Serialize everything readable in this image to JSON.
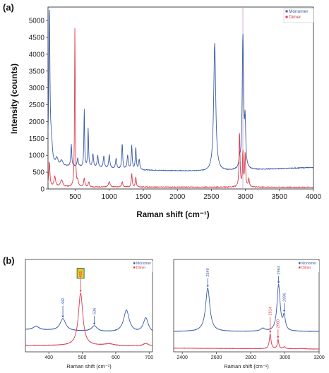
{
  "colors": {
    "monomer": "#3a5aa8",
    "dimer": "#d93a4a",
    "axis": "#333333",
    "marker": "#c9a0c9"
  },
  "chart_data": [
    {
      "id": "a",
      "panel_label": "(a)",
      "type": "line",
      "xlabel": "Raman shift (cm⁻¹)",
      "ylabel": "Intensity (counts)",
      "xlim": [
        100,
        4000
      ],
      "ylim": [
        0,
        5400
      ],
      "xticks": [
        500,
        1000,
        1500,
        2000,
        2500,
        3000,
        3500,
        4000
      ],
      "yticks": [
        0,
        500,
        1000,
        1500,
        2000,
        2500,
        3000,
        3500,
        4000,
        4500,
        5000
      ],
      "vline": 2963,
      "legend": {
        "position": "top-right",
        "entries": [
          "Monomer",
          "Dimer"
        ]
      },
      "series": [
        {
          "name": "Monomer",
          "color": "#3a5aa8",
          "baseline": [
            [
              100,
              700
            ],
            [
              1500,
              560
            ],
            [
              2500,
              520
            ],
            [
              4000,
              640
            ]
          ],
          "peaks": [
            [
              120,
              4600,
              10
            ],
            [
              150,
              600,
              15
            ],
            [
              230,
              200,
              20
            ],
            [
              300,
              150,
              20
            ],
            [
              442,
              650,
              8
            ],
            [
              536,
              250,
              10
            ],
            [
              632,
              1750,
              6
            ],
            [
              690,
              1150,
              7
            ],
            [
              760,
              400,
              10
            ],
            [
              830,
              350,
              10
            ],
            [
              920,
              350,
              10
            ],
            [
              1000,
              400,
              10
            ],
            [
              1100,
              300,
              10
            ],
            [
              1190,
              750,
              8
            ],
            [
              1270,
              400,
              10
            ],
            [
              1330,
              700,
              8
            ],
            [
              1390,
              650,
              8
            ],
            [
              1440,
              300,
              10
            ],
            [
              2549,
              3800,
              18
            ],
            [
              2963,
              3950,
              12
            ],
            [
              2996,
              1300,
              10
            ],
            [
              2914,
              300,
              10
            ]
          ]
        },
        {
          "name": "Dimer",
          "color": "#d93a4a",
          "baseline": [
            [
              100,
              60
            ],
            [
              4000,
              50
            ]
          ],
          "peaks": [
            [
              120,
              750,
              10
            ],
            [
              200,
              300,
              15
            ],
            [
              300,
              200,
              20
            ],
            [
              495,
              4750,
              6
            ],
            [
              536,
              150,
              10
            ],
            [
              632,
              250,
              10
            ],
            [
              700,
              150,
              10
            ],
            [
              1000,
              150,
              15
            ],
            [
              1190,
              150,
              10
            ],
            [
              1330,
              400,
              8
            ],
            [
              1390,
              300,
              8
            ],
            [
              2914,
              1650,
              8
            ],
            [
              2963,
              1050,
              7
            ],
            [
              2996,
              1000,
              8
            ],
            [
              3050,
              250,
              10
            ]
          ]
        }
      ]
    },
    {
      "id": "b-left",
      "panel_label": "(b)",
      "type": "line",
      "xlabel": "Raman shift (cm⁻¹)",
      "ylabel": "",
      "xlim": [
        330,
        710
      ],
      "ylim": [
        0,
        1
      ],
      "xticks": [
        400,
        500,
        600,
        700
      ],
      "legend": {
        "position": "top-right",
        "entries": [
          "Monomer",
          "Dimer"
        ]
      },
      "annotations": [
        {
          "text": "442",
          "x": 442,
          "series": "Monomer",
          "boxed": false
        },
        {
          "text": "495",
          "x": 495,
          "series": "Dimer",
          "boxed": true
        },
        {
          "text": "536",
          "x": 536,
          "series": "Monomer",
          "boxed": false
        }
      ],
      "series": [
        {
          "name": "Monomer",
          "color": "#3a5aa8",
          "baseline": [
            [
              330,
              0.24
            ],
            [
              710,
              0.2
            ]
          ],
          "peaks": [
            [
              362,
              0.04,
              10
            ],
            [
              442,
              0.13,
              10
            ],
            [
              536,
              0.06,
              10
            ],
            [
              632,
              0.24,
              10
            ],
            [
              690,
              0.16,
              9
            ]
          ]
        },
        {
          "name": "Dimer",
          "color": "#d93a4a",
          "baseline": [
            [
              330,
              0.07
            ],
            [
              710,
              0.06
            ]
          ],
          "peaks": [
            [
              495,
              0.57,
              8
            ],
            [
              580,
              0.02,
              20
            ],
            [
              690,
              0.03,
              10
            ]
          ]
        }
      ]
    },
    {
      "id": "b-right",
      "panel_label": "",
      "type": "line",
      "xlabel": "Raman shift (cm⁻¹)",
      "ylabel": "",
      "xlim": [
        2350,
        3200
      ],
      "ylim": [
        0,
        1
      ],
      "xticks": [
        2400,
        2600,
        2800,
        3000,
        3200
      ],
      "legend": {
        "position": "top-right",
        "entries": [
          "Monomer",
          "Dimer"
        ]
      },
      "annotations": [
        {
          "text": "2549",
          "x": 2549,
          "series": "Monomer",
          "boxed": false
        },
        {
          "text": "2914",
          "x": 2914,
          "series": "Dimer",
          "boxed": false
        },
        {
          "text": "2960",
          "x": 2960,
          "series": "Dimer",
          "boxed": false
        },
        {
          "text": "2963",
          "x": 2963,
          "series": "Monomer",
          "boxed": false
        },
        {
          "text": "2996",
          "x": 2996,
          "series": "Monomer",
          "boxed": false
        }
      ],
      "series": [
        {
          "name": "Monomer",
          "color": "#3a5aa8",
          "baseline": [
            [
              2350,
              0.22
            ],
            [
              3200,
              0.22
            ]
          ],
          "peaks": [
            [
              2549,
              0.47,
              15
            ],
            [
              2870,
              0.03,
              15
            ],
            [
              2963,
              0.5,
              11
            ],
            [
              2996,
              0.15,
              8
            ]
          ]
        },
        {
          "name": "Dimer",
          "color": "#d93a4a",
          "baseline": [
            [
              2350,
              0.04
            ],
            [
              3200,
              0.03
            ]
          ],
          "peaks": [
            [
              2914,
              0.16,
              6
            ],
            [
              2960,
              0.1,
              5
            ],
            [
              2996,
              0.02,
              8
            ],
            [
              3100,
              0.005,
              20
            ]
          ]
        }
      ]
    }
  ]
}
